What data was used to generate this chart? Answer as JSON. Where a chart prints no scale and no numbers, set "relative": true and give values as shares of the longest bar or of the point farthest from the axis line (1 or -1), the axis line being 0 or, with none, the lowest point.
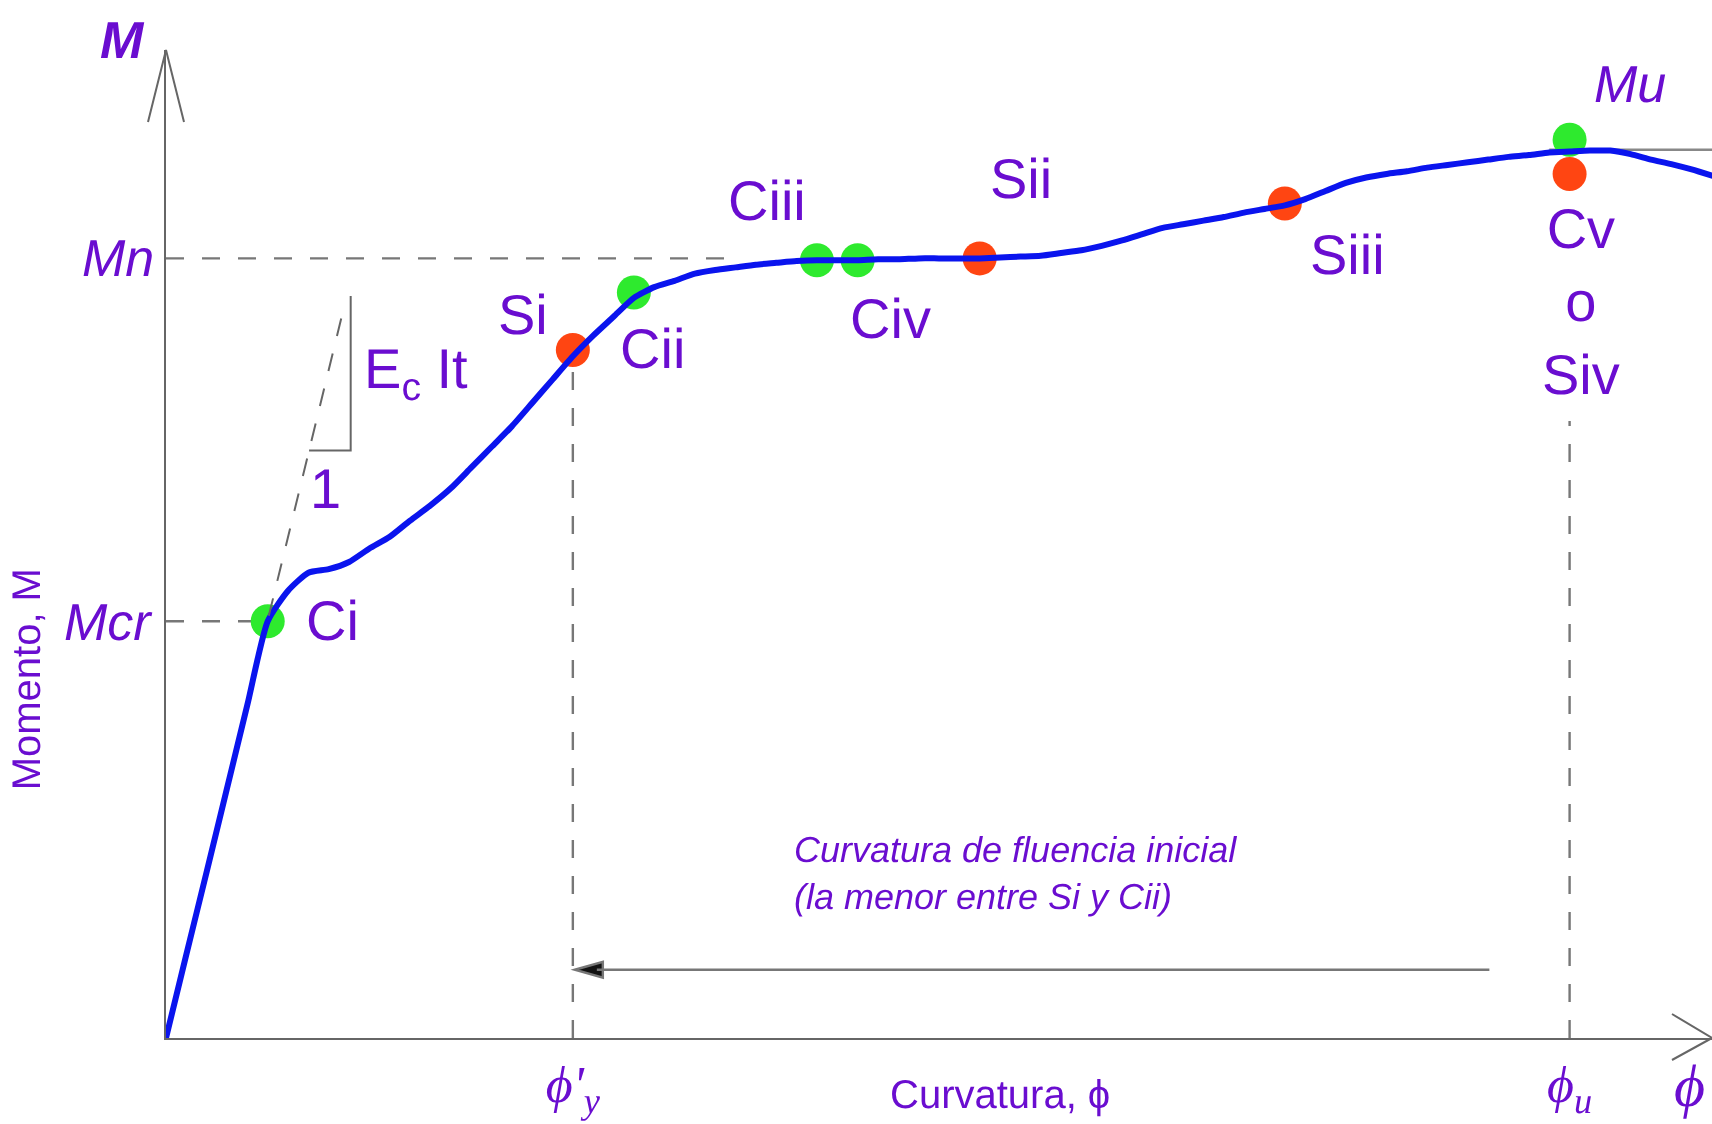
{
  "chart_data": {
    "type": "line",
    "relative": true,
    "xlabel": "Curvatura, ϕ",
    "ylabel": "Momento, M",
    "categories": [
      null,
      null,
      null,
      null,
      null,
      null,
      null,
      null,
      null,
      null,
      null,
      null,
      null,
      null,
      null,
      null,
      null,
      null,
      null,
      null,
      "ϕ'$_{y}$",
      null,
      null,
      null,
      null,
      null,
      null,
      null,
      null,
      null,
      null,
      null,
      null,
      null,
      null,
      null,
      null,
      null,
      null,
      null,
      null,
      null,
      null,
      null,
      null,
      null,
      null,
      null,
      null,
      null,
      null,
      null,
      null,
      null,
      null,
      null,
      null,
      null,
      null,
      null,
      null,
      null,
      null,
      null,
      null,
      null,
      null,
      null,
      null,
      "ϕ$_{u}$",
      null,
      null,
      null,
      null,
      null,
      null,
      null
    ],
    "series": [
      {
        "color": "#0a14ee",
        "values": [
          0,
          0.093,
          0.185,
          0.278,
          0.371,
          0.464,
          0.498,
          0.518,
          0.522,
          0.53,
          0.545,
          0.558,
          0.576,
          0.593,
          0.612,
          0.635,
          0.658,
          0.681,
          0.707,
          0.733,
          0.759,
          0.782,
          0.803,
          0.824,
          0.836,
          0.843,
          0.851,
          0.855,
          0.858,
          0.861,
          0.863,
          0.865,
          0.866,
          0.866,
          0.866,
          0.867,
          0.867,
          0.868,
          0.868,
          0.868,
          0.868,
          0.869,
          0.87,
          0.871,
          0.874,
          0.877,
          0.882,
          0.888,
          0.895,
          0.902,
          0.906,
          0.91,
          0.914,
          0.919,
          0.923,
          0.927,
          0.934,
          0.943,
          0.952,
          0.958,
          0.962,
          0.965,
          0.969,
          0.972,
          0.975,
          0.978,
          0.981,
          0.983,
          0.986,
          0.987,
          0.988,
          0.988,
          0.984,
          0.978,
          0.973,
          0.967,
          0.96
        ]
      },
      {
        "type": "scatter",
        "marker": "circle",
        "color": "#2eea2e",
        "values": [
          null,
          null,
          null,
          null,
          null,
          0.464,
          null,
          null,
          null,
          null,
          null,
          null,
          null,
          null,
          null,
          null,
          null,
          null,
          null,
          null,
          null,
          null,
          null,
          0.83,
          null,
          null,
          null,
          null,
          null,
          null,
          null,
          null,
          0.866,
          null,
          0.866,
          null,
          null,
          null,
          null,
          null,
          null,
          null,
          null,
          null,
          null,
          null,
          null,
          null,
          null,
          null,
          null,
          null,
          null,
          null,
          null,
          null,
          null,
          null,
          null,
          null,
          null,
          null,
          null,
          null,
          null,
          null,
          null,
          null,
          null,
          1,
          null,
          null,
          null,
          null,
          null,
          null,
          null
        ]
      },
      {
        "type": "scatter",
        "marker": "circle",
        "color": "#ff4512",
        "values": [
          null,
          null,
          null,
          null,
          null,
          null,
          null,
          null,
          null,
          null,
          null,
          null,
          null,
          null,
          null,
          null,
          null,
          null,
          null,
          null,
          0.766,
          null,
          null,
          null,
          null,
          null,
          null,
          null,
          null,
          null,
          null,
          null,
          null,
          null,
          null,
          null,
          null,
          null,
          null,
          null,
          0.868,
          null,
          null,
          null,
          null,
          null,
          null,
          null,
          null,
          null,
          null,
          null,
          null,
          null,
          null,
          0.929,
          null,
          null,
          null,
          null,
          null,
          null,
          null,
          null,
          null,
          null,
          null,
          null,
          null,
          0.962,
          null,
          null,
          null,
          null,
          null,
          null,
          null
        ]
      }
    ],
    "ref_lines": [
      {
        "axis": "y",
        "value": 0.464,
        "label": "Mcr",
        "line_style": "dashed",
        "color": "#777777"
      },
      {
        "axis": "y",
        "value": 0.868,
        "label": "Mn",
        "line_style": "dashed",
        "color": "#777777"
      },
      {
        "axis": "y",
        "value": 0.989,
        "line_style": "solid",
        "color": "#888888"
      },
      {
        "axis": "x",
        "value": "ϕ'$_{y}$",
        "line_style": "dashed",
        "color": "#777777"
      },
      {
        "axis": "x",
        "value": "ϕ$_{u}$",
        "line_style": "dashed",
        "color": "#777777"
      }
    ],
    "annotations": [
      "M",
      "ϕ",
      "E$_{c}$ It",
      "1",
      "Curvatura de fluencia inicial\n(la menor entre Si y Cii)",
      "Ci",
      "Si",
      "Cii",
      "Ciii",
      "Civ",
      "Sii",
      "Siii",
      "Mu",
      "Cv\no\nSiv"
    ]
  }
}
